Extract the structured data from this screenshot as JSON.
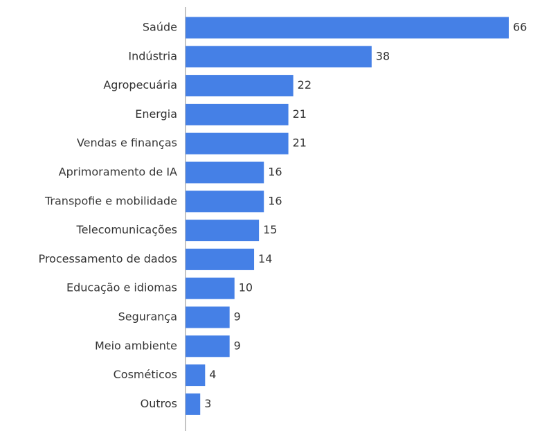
{
  "chart_data": {
    "type": "hbar",
    "categories": [
      "Saúde",
      "Indústria",
      "Agropecuária",
      "Energia",
      "Vendas e finanças",
      "Aprimoramento de IA",
      "Transpofie e mobilidade",
      "Telecomunicações",
      "Processamento de dados",
      "Educação e idiomas",
      "Segurança",
      "Meio ambiente",
      "Cosméticos",
      "Outros"
    ],
    "values": [
      66,
      38,
      22,
      21,
      21,
      16,
      16,
      15,
      14,
      10,
      9,
      9,
      4,
      3
    ],
    "color": "#4580e6"
  }
}
